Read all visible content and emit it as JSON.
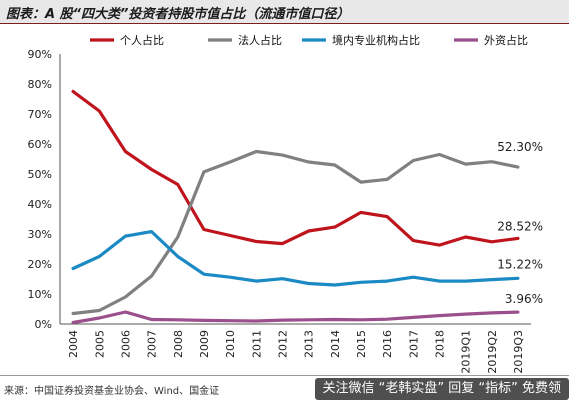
{
  "header": {
    "title": "图表：A 股“四大类”投资者持股市值占比（流通市值口径）"
  },
  "footer": {
    "source": "来源：中国证券投资基金业协会、Wind、国金证",
    "watermark": "关注微信 “老韩实盘” 回复 “指标” 免费领"
  },
  "colors": {
    "individual": "#c0141c",
    "corporate": "#808080",
    "domestic_inst": "#1b8ac4",
    "foreign": "#9b4f8c"
  },
  "chart_data": {
    "type": "line",
    "title": "",
    "xlabel": "",
    "ylabel": "",
    "ylim": [
      0,
      90
    ],
    "y_ticks": [
      "0%",
      "10%",
      "20%",
      "30%",
      "40%",
      "50%",
      "60%",
      "70%",
      "80%",
      "90%"
    ],
    "grid": false,
    "legend_position": "top",
    "x": [
      "2004",
      "2005",
      "2006",
      "2007",
      "2008",
      "2009",
      "2010",
      "2011",
      "2012",
      "2013",
      "2014",
      "2015",
      "2016",
      "2017",
      "2018",
      "2019Q1",
      "2019Q2",
      "2019Q3"
    ],
    "series": [
      {
        "key": "individual",
        "name": "个人占比",
        "values": [
          77.5,
          71,
          57.5,
          51.5,
          46.5,
          31.5,
          29.5,
          27.5,
          26.8,
          31,
          32.3,
          37.2,
          35.8,
          27.8,
          26.3,
          29,
          27.4,
          28.52
        ],
        "end_label": "28.52%"
      },
      {
        "key": "corporate",
        "name": "法人占比",
        "values": [
          3.5,
          4.5,
          9,
          16,
          29,
          50.7,
          54,
          57.5,
          56.3,
          54,
          53,
          47.3,
          48.2,
          54.5,
          56.5,
          53.3,
          54.1,
          52.3
        ],
        "end_label": "52.30%"
      },
      {
        "key": "domestic_inst",
        "name": "境内专业机构占比",
        "values": [
          18.5,
          22.5,
          29.3,
          30.8,
          22.5,
          16.6,
          15.6,
          14.3,
          15.1,
          13.5,
          13,
          13.9,
          14.3,
          15.6,
          14.3,
          14.3,
          14.8,
          15.22
        ],
        "end_label": "15.22%"
      },
      {
        "key": "foreign",
        "name": "外资占比",
        "values": [
          0.5,
          2,
          4,
          1.5,
          1.4,
          1.2,
          1.1,
          1,
          1.3,
          1.4,
          1.5,
          1.4,
          1.6,
          2.2,
          2.8,
          3.3,
          3.7,
          3.96
        ],
        "end_label": "3.96%"
      }
    ]
  }
}
